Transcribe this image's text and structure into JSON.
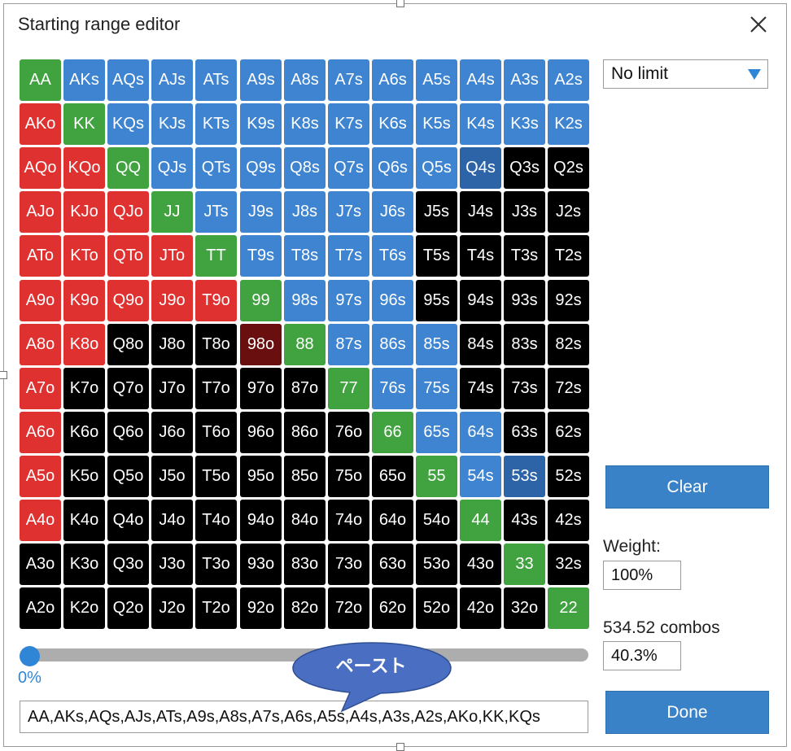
{
  "window": {
    "title": "Starting range editor",
    "close_icon": "close-icon"
  },
  "grid": {
    "rows": [
      [
        "AA",
        "AKs",
        "AQs",
        "AJs",
        "ATs",
        "A9s",
        "A8s",
        "A7s",
        "A6s",
        "A5s",
        "A4s",
        "A3s",
        "A2s"
      ],
      [
        "AKo",
        "KK",
        "KQs",
        "KJs",
        "KTs",
        "K9s",
        "K8s",
        "K7s",
        "K6s",
        "K5s",
        "K4s",
        "K3s",
        "K2s"
      ],
      [
        "AQo",
        "KQo",
        "QQ",
        "QJs",
        "QTs",
        "Q9s",
        "Q8s",
        "Q7s",
        "Q6s",
        "Q5s",
        "Q4s",
        "Q3s",
        "Q2s"
      ],
      [
        "AJo",
        "KJo",
        "QJo",
        "JJ",
        "JTs",
        "J9s",
        "J8s",
        "J7s",
        "J6s",
        "J5s",
        "J4s",
        "J3s",
        "J2s"
      ],
      [
        "ATo",
        "KTo",
        "QTo",
        "JTo",
        "TT",
        "T9s",
        "T8s",
        "T7s",
        "T6s",
        "T5s",
        "T4s",
        "T3s",
        "T2s"
      ],
      [
        "A9o",
        "K9o",
        "Q9o",
        "J9o",
        "T9o",
        "99",
        "98s",
        "97s",
        "96s",
        "95s",
        "94s",
        "93s",
        "92s"
      ],
      [
        "A8o",
        "K8o",
        "Q8o",
        "J8o",
        "T8o",
        "98o",
        "88",
        "87s",
        "86s",
        "85s",
        "84s",
        "83s",
        "82s"
      ],
      [
        "A7o",
        "K7o",
        "Q7o",
        "J7o",
        "T7o",
        "97o",
        "87o",
        "77",
        "76s",
        "75s",
        "74s",
        "73s",
        "72s"
      ],
      [
        "A6o",
        "K6o",
        "Q6o",
        "J6o",
        "T6o",
        "96o",
        "86o",
        "76o",
        "66",
        "65s",
        "64s",
        "63s",
        "62s"
      ],
      [
        "A5o",
        "K5o",
        "Q5o",
        "J5o",
        "T5o",
        "95o",
        "85o",
        "75o",
        "65o",
        "55",
        "54s",
        "53s",
        "52s"
      ],
      [
        "A4o",
        "K4o",
        "Q4o",
        "J4o",
        "T4o",
        "94o",
        "84o",
        "74o",
        "64o",
        "54o",
        "44",
        "43s",
        "42s"
      ],
      [
        "A3o",
        "K3o",
        "Q3o",
        "J3o",
        "T3o",
        "93o",
        "83o",
        "73o",
        "63o",
        "53o",
        "43o",
        "33",
        "32s"
      ],
      [
        "A2o",
        "K2o",
        "Q2o",
        "J2o",
        "T2o",
        "92o",
        "82o",
        "72o",
        "62o",
        "52o",
        "42o",
        "32o",
        "22"
      ]
    ],
    "states": [
      "gbbbbbbbbbbbb",
      "rgbbbbbbbbbbb",
      "rrgbbbbbbbdkk",
      "rrrgbbbbbkkkk",
      "rrrrgbbbbkkkk",
      "rrrrrgbbbkkkk",
      "rrkkkmgbbbkkk",
      "rkkkkkkgbbkkk",
      "rkkkkkkkgbbkk",
      "rkkkkkkkkgbdk",
      "rkkkkkkkkkgkk",
      "kkkkkkkkkkkgk",
      "kkkkkkkkkkkkg"
    ],
    "colors": {
      "g": "#41a240",
      "b": "#3f84d0",
      "d": "#2d64a8",
      "r": "#e03131",
      "k": "#000000",
      "m": "#6a0f0f"
    }
  },
  "game_type": {
    "selected": "No limit"
  },
  "clear_button": "Clear",
  "weight": {
    "label": "Weight:",
    "value": "100%"
  },
  "combos": {
    "label": "534.52 combos",
    "percent": "40.3%"
  },
  "slider": {
    "value": 0,
    "label": "0%"
  },
  "range_text": "AA,AKs,AQs,AJs,ATs,A9s,A8s,A7s,A6s,A5s,A4s,A3s,A2s,AKo,KK,KQs",
  "done_button": "Done",
  "callout": "ペースト"
}
